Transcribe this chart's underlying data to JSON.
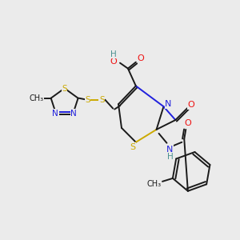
{
  "bg_color": "#ebebeb",
  "atom_colors": {
    "C": "#1a1a1a",
    "N": "#2020dd",
    "O": "#ee1111",
    "S": "#ccaa00",
    "H": "#4a9090"
  },
  "figsize": [
    3.0,
    3.0
  ],
  "dpi": 100,
  "lw": 1.4,
  "fontsize": 7.5
}
